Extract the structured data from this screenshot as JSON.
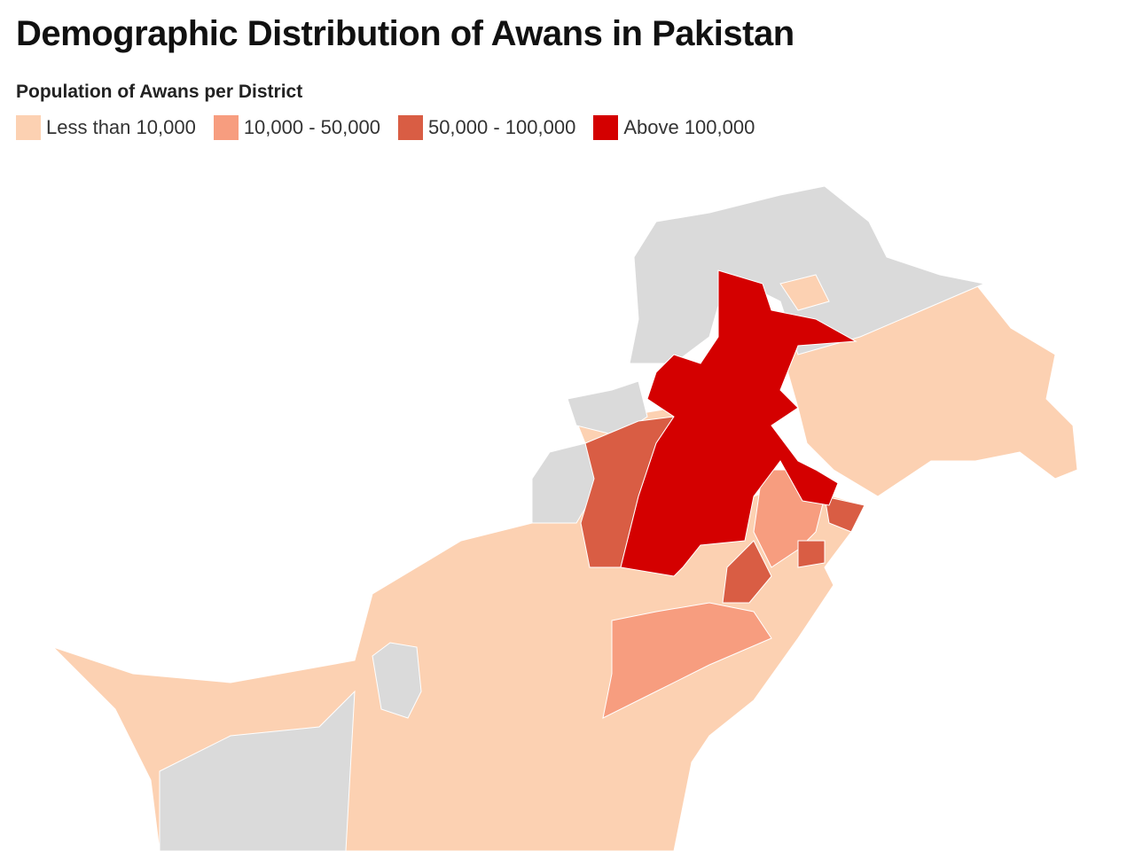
{
  "title": "Demographic Distribution of Awans in Pakistan",
  "legend": {
    "title": "Population of Awans per District",
    "items": [
      {
        "label": "Less than 10,000",
        "color": "#fcd1b2"
      },
      {
        "label": "10,000 - 50,000",
        "color": "#f79d7f"
      },
      {
        "label": "50,000 - 100,000",
        "color": "#d95d44"
      },
      {
        "label": "Above 100,000",
        "color": "#d40000"
      }
    ]
  }
}
